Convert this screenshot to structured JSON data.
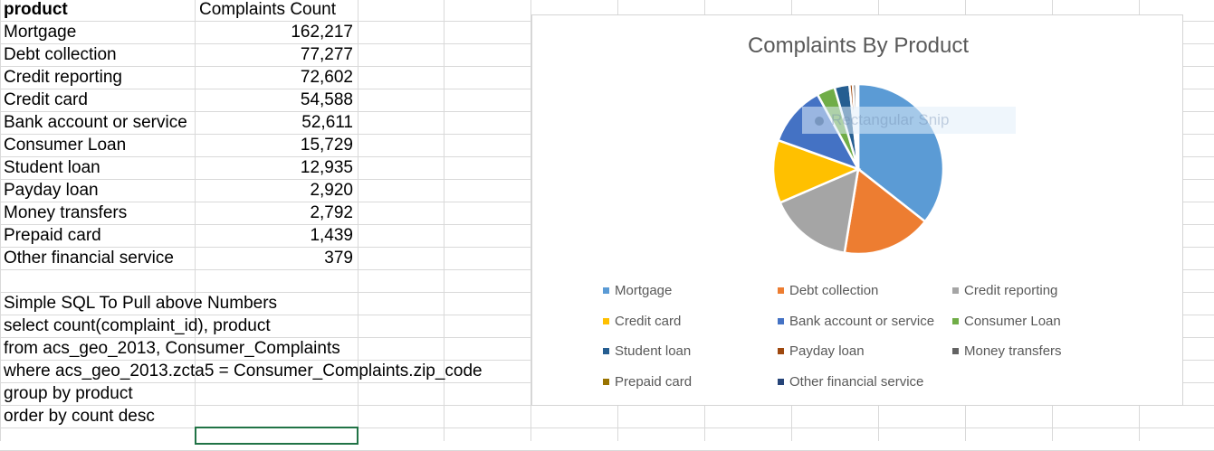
{
  "sheet": {
    "headers": {
      "product": "product",
      "count": "Complaints Count"
    },
    "rows": [
      {
        "product": "Mortgage",
        "count": "162,217"
      },
      {
        "product": "Debt collection",
        "count": "77,277"
      },
      {
        "product": "Credit reporting",
        "count": "72,602"
      },
      {
        "product": "Credit card",
        "count": "54,588"
      },
      {
        "product": "Bank account or service",
        "count": "52,611"
      },
      {
        "product": "Consumer Loan",
        "count": "15,729"
      },
      {
        "product": "Student loan",
        "count": "12,935"
      },
      {
        "product": "Payday loan",
        "count": "2,920"
      },
      {
        "product": "Money transfers",
        "count": "2,792"
      },
      {
        "product": "Prepaid card",
        "count": "1,439"
      },
      {
        "product": "Other financial service",
        "count": "379"
      }
    ],
    "notes": [
      "Simple SQL To Pull above Numbers",
      "select count(complaint_id), product",
      "from  acs_geo_2013, Consumer_Complaints",
      "where acs_geo_2013.zcta5 = Consumer_Complaints.zip_code",
      "group by product",
      "order by count desc"
    ]
  },
  "chart_data": {
    "type": "pie",
    "title": "Complaints By Product",
    "categories": [
      "Mortgage",
      "Debt collection",
      "Credit reporting",
      "Credit card",
      "Bank account or service",
      "Consumer Loan",
      "Student loan",
      "Payday loan",
      "Money transfers",
      "Prepaid card",
      "Other financial service"
    ],
    "values": [
      162217,
      77277,
      72602,
      54588,
      52611,
      15729,
      12935,
      2920,
      2792,
      1439,
      379
    ],
    "colors": [
      "#5b9bd5",
      "#ed7d31",
      "#a5a5a5",
      "#ffc000",
      "#4472c4",
      "#70ad47",
      "#255e91",
      "#9e480e",
      "#636363",
      "#997300",
      "#264478"
    ],
    "legend_position": "bottom"
  },
  "overlay": {
    "snip_label": "Rectangular Snip"
  }
}
